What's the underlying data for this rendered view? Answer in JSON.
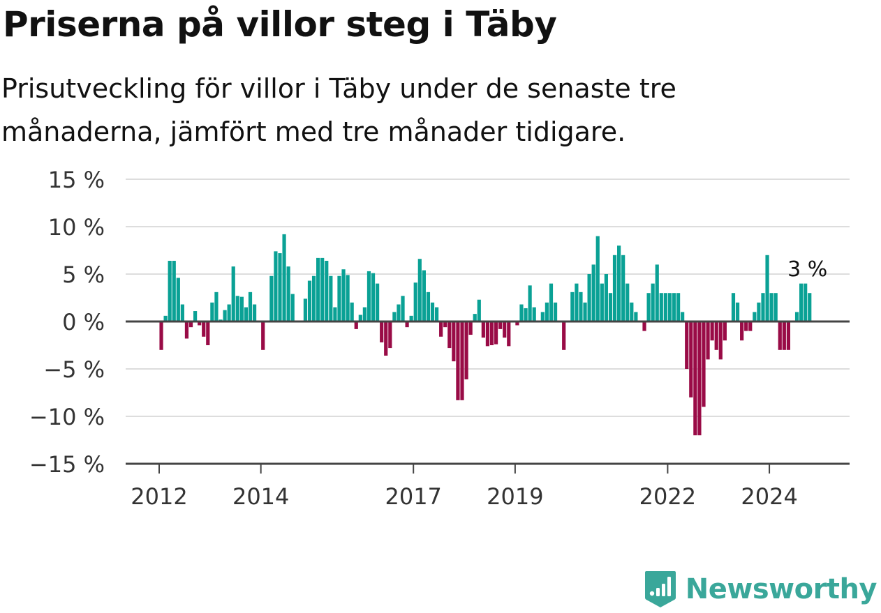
{
  "header": {
    "title": "Priserna på villor steg i Täby",
    "subtitle": "Prisutveckling för villor i Täby under de senaste tre månaderna, jämfört med tre månader tidigare."
  },
  "brand": {
    "name": "Newsworthy",
    "icon": "newsworthy-logo-icon"
  },
  "colors": {
    "positive": "#0aa195",
    "negative": "#990b46",
    "grid": "#dddddd",
    "axis": "#444444",
    "text": "#333333"
  },
  "chart_data": {
    "type": "bar",
    "ylim": [
      -15,
      15
    ],
    "yticks": [
      15,
      10,
      5,
      0,
      -5,
      -10,
      -15
    ],
    "ytick_labels": [
      "15 %",
      "10 %",
      "5 %",
      "0 %",
      "−5 %",
      "−10 %",
      "−15 %"
    ],
    "xticks": [
      "2012",
      "2014",
      "2017",
      "2019",
      "2022",
      "2024"
    ],
    "grid": true,
    "annotation": "3 %",
    "start_month": "2012-01",
    "values": [
      -3,
      0.6,
      6.4,
      6.4,
      4.6,
      1.8,
      -1.8,
      -0.6,
      1.1,
      -0.4,
      -1.6,
      -2.5,
      2,
      3.1,
      0.2,
      1.2,
      1.8,
      5.8,
      2.7,
      2.6,
      1.5,
      3.1,
      1.8,
      0,
      -3,
      0,
      4.8,
      7.4,
      7.2,
      9.2,
      5.8,
      2.9,
      0,
      0,
      2.4,
      4.3,
      4.8,
      6.7,
      6.7,
      6.4,
      4.8,
      1.5,
      4.8,
      5.5,
      4.9,
      2,
      -0.8,
      0.7,
      1.5,
      5.3,
      5.1,
      4,
      -2.2,
      -3.6,
      -2.8,
      1,
      1.8,
      2.7,
      -0.6,
      0.6,
      4.1,
      6.6,
      5.4,
      3.1,
      2,
      1.5,
      -1.6,
      -0.6,
      -2.8,
      -4.2,
      -8.3,
      -8.3,
      -6.1,
      -1.4,
      0.8,
      2.3,
      -1.7,
      -2.6,
      -2.5,
      -2.4,
      -0.8,
      -1.7,
      -2.6,
      0,
      -0.4,
      1.8,
      1.4,
      3.8,
      1.5,
      0,
      1,
      2,
      4,
      2,
      0,
      -3,
      0,
      3.1,
      4,
      3.1,
      2,
      5,
      6,
      9,
      4,
      5,
      3,
      7,
      8,
      7,
      4,
      2,
      1,
      0,
      -1,
      3,
      4,
      6,
      3,
      3,
      3,
      3,
      3,
      1,
      -5,
      -8,
      -12,
      -12,
      -9,
      -4,
      -2,
      -3,
      -4,
      -2,
      0,
      3,
      2,
      -2,
      -1,
      -1,
      1,
      2,
      3,
      7,
      3,
      3,
      -3,
      -3,
      -3,
      0,
      1,
      4,
      4,
      3
    ]
  }
}
